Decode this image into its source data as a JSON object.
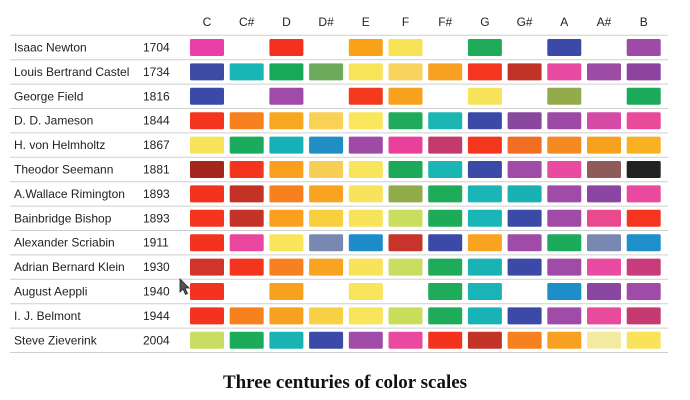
{
  "caption": "Three centuries of color scales",
  "chart_data": {
    "type": "table",
    "columns": [
      "C",
      "C#",
      "D",
      "D#",
      "E",
      "F",
      "F#",
      "G",
      "G#",
      "A",
      "A#",
      "B"
    ],
    "rows": [
      {
        "name": "Isaac Newton",
        "year": "1704",
        "colors": [
          "#E93FA8",
          null,
          "#F4311E",
          null,
          "#F9A219",
          "#F8E357",
          null,
          "#1FAB5A",
          null,
          "#3A4AA6",
          null,
          "#9F4AA7"
        ]
      },
      {
        "name": "Louis Bertrand Castel",
        "year": "1734",
        "colors": [
          "#3D4AA6",
          "#1AB5B7",
          "#17A859",
          "#6DAB5C",
          "#F9E55A",
          "#F8D45F",
          "#F7A021",
          "#F4351F",
          "#C03328",
          "#E94AA1",
          "#9D4BA4",
          "#8D44A0"
        ]
      },
      {
        "name": "George Field",
        "year": "1816",
        "colors": [
          "#3B4AA8",
          null,
          "#A04BA7",
          null,
          "#F33A1E",
          "#F8A11F",
          null,
          "#F8E45B",
          null,
          "#93AA4D",
          null,
          "#1BAA5A"
        ]
      },
      {
        "name": "D. D. Jameson",
        "year": "1844",
        "colors": [
          "#F4341F",
          "#F7811F",
          "#F8A820",
          "#F8D155",
          "#F9E65C",
          "#1FAB5A",
          "#1BB5B4",
          "#3B4AA7",
          "#8947A0",
          "#9C4AA5",
          "#D44AA5",
          "#E94B9A"
        ]
      },
      {
        "name": "H. von Helmholtz",
        "year": "1867",
        "colors": [
          "#F8E45B",
          "#1AAB5D",
          "#16B0B8",
          "#1E8EC5",
          "#A04AA8",
          "#E9409C",
          "#C53A6C",
          "#F4361E",
          "#F26E23",
          "#F48A22",
          "#F7A11E",
          "#F8B120"
        ]
      },
      {
        "name": "Theodor Seemann",
        "year": "1881",
        "colors": [
          "#A3271E",
          "#F4351E",
          "#F9A11F",
          "#F8CF56",
          "#F8E55C",
          "#1CA95A",
          "#19B6B4",
          "#3B4AA7",
          "#A04BA7",
          "#E94BA0",
          "#8E5A5A",
          "#222222"
        ]
      },
      {
        "name": "A.Wallace Rimington",
        "year": "1893",
        "colors": [
          "#F4331F",
          "#C43226",
          "#F7801F",
          "#F8A421",
          "#F8E45C",
          "#8FAB4A",
          "#1EAB5A",
          "#1BB5B7",
          "#1AB1B3",
          "#A04BA7",
          "#8A46A2",
          "#E94AA0"
        ]
      },
      {
        "name": "Bainbridge Bishop",
        "year": "1893",
        "colors": [
          "#F4341F",
          "#C43328",
          "#F9A11F",
          "#F8D03E",
          "#F8E45B",
          "#C9DE5E",
          "#1DAB5A",
          "#1AB5B6",
          "#3B4AA7",
          "#A04BA6",
          "#E94A8E",
          "#F4351F"
        ]
      },
      {
        "name": "Alexander Scriabin",
        "year": "1911",
        "colors": [
          "#F4331E",
          "#E9479E",
          "#F8E55A",
          "#7888B2",
          "#1D8DCA",
          "#C6342B",
          "#3B49A8",
          "#F8A420",
          "#A04BA7",
          "#1CAB5A",
          "#7888B1",
          "#1E8FC9"
        ]
      },
      {
        "name": "Adrian Bernard Klein",
        "year": "1930",
        "colors": [
          "#D1342B",
          "#F4351E",
          "#F78020",
          "#F8A321",
          "#F8E35B",
          "#C9DE60",
          "#1EAB5A",
          "#1AB3B4",
          "#3B4AA6",
          "#A04BA6",
          "#E94AA2",
          "#C83C7C"
        ]
      },
      {
        "name": "August Aeppli",
        "year": "1940",
        "colors": [
          "#F4331F",
          null,
          "#F8A11F",
          null,
          "#F8E55C",
          null,
          "#1EAB5A",
          "#1BB4B6",
          null,
          "#1E8EC8",
          "#8947A2",
          "#A04BA7"
        ]
      },
      {
        "name": "I. J. Belmont",
        "year": "1944",
        "colors": [
          "#F4331F",
          "#F7801F",
          "#F8A121",
          "#F8D045",
          "#F8E55C",
          "#C9DD5A",
          "#1EAB5A",
          "#1AB3B5",
          "#3B4AA6",
          "#A04BA7",
          "#E94B9D",
          "#C63A72"
        ]
      },
      {
        "name": "Steve Zieverink",
        "year": "2004",
        "colors": [
          "#C8DE62",
          "#1CAB5A",
          "#1AB3B4",
          "#3A4AA6",
          "#A04BA7",
          "#E94AA0",
          "#F4331F",
          "#C43328",
          "#F7811F",
          "#F8A021",
          "#F4EBA2",
          "#F8E35A"
        ]
      }
    ]
  }
}
